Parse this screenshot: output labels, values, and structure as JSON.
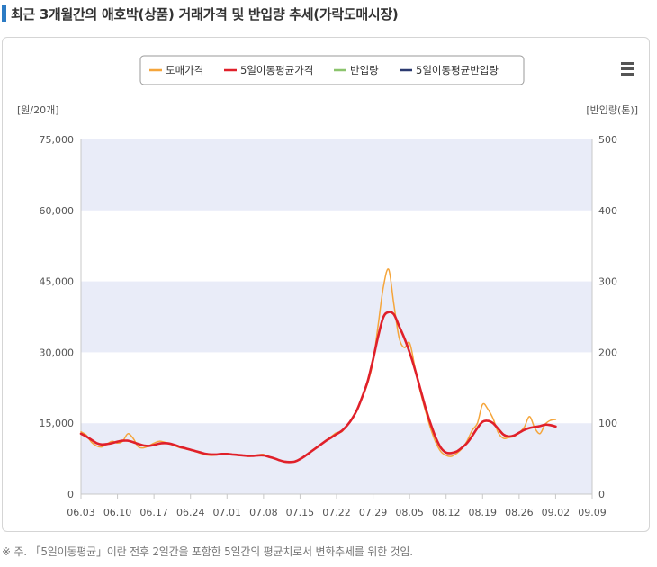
{
  "page": {
    "title": "최근 3개월간의 애호박(상품) 거래가격 및 반입량 추세(가락도매시장)",
    "footnote": "※ 주. 「5일이동평균」이란 전후 2일간을 포함한 5일간의 평균치로서 변화추세를 위한 것임."
  },
  "colors": {
    "price": "#f5a53b",
    "price_ma5": "#e0202a",
    "volume": "#8cc46d",
    "volume_ma5": "#2b3a70",
    "band": "#e9ecf8",
    "accent": "#2c7bc4"
  },
  "chart_data": {
    "type": "line",
    "menu_icon": "hamburger-menu-icon",
    "legend": [
      "도매가격",
      "5일이동평균가격",
      "반입량",
      "5일이동평균반입량"
    ],
    "legend_position": "top-center",
    "y_left_label": "[원/20개]",
    "y_right_label": "[반입량(톤)]",
    "y_left_ticks": [
      "0",
      "15,000",
      "30,000",
      "45,000",
      "60,000",
      "75,000"
    ],
    "y_right_ticks": [
      "0",
      "100",
      "200",
      "300",
      "400",
      "500"
    ],
    "ylim_left": [
      0,
      75000
    ],
    "ylim_right": [
      0,
      500
    ],
    "x_ticks": [
      "06.03",
      "06.10",
      "06.17",
      "06.24",
      "07.01",
      "07.08",
      "07.15",
      "07.22",
      "07.29",
      "08.05",
      "08.12",
      "08.19",
      "08.26",
      "09.02",
      "09.09"
    ],
    "alternating_bands": true,
    "series": [
      {
        "name": "도매가격",
        "x": [
          0,
          1,
          2,
          3,
          4,
          5,
          6,
          7,
          8,
          9,
          10,
          11,
          12,
          13,
          14,
          15,
          16,
          17,
          18,
          19,
          20,
          21,
          22,
          23,
          24,
          25,
          26,
          27,
          28,
          29,
          30,
          31,
          32,
          33,
          34,
          35,
          36,
          37,
          38,
          39,
          40,
          41,
          42,
          43,
          44,
          45,
          46,
          47,
          48,
          49,
          50,
          51,
          52,
          53,
          54,
          55,
          56,
          57,
          58,
          59,
          60,
          61,
          62,
          63,
          64,
          65,
          66,
          67,
          68,
          69,
          70,
          71,
          72,
          73,
          74,
          75,
          76,
          77,
          78,
          79,
          80,
          81,
          82,
          83,
          84,
          85,
          86,
          87,
          88,
          89,
          90,
          91
        ],
        "values": [
          13200,
          12500,
          11000,
          10200,
          10000,
          10600,
          11200,
          10800,
          11200,
          12800,
          11800,
          10000,
          9800,
          10200,
          10800,
          11200,
          11000,
          10600,
          10200,
          9800,
          9600,
          9300,
          9000,
          8600,
          8300,
          8200,
          8300,
          8500,
          8600,
          8400,
          8200,
          8200,
          8000,
          8100,
          8300,
          8400,
          7900,
          7600,
          7200,
          6800,
          6700,
          6900,
          7500,
          8200,
          9000,
          9800,
          10600,
          11400,
          12200,
          13000,
          13200,
          14500,
          16000,
          18000,
          20600,
          23600,
          28000,
          36000,
          44000,
          47500,
          40000,
          33000,
          31000,
          32000,
          27000,
          22000,
          17800,
          14000,
          11000,
          9000,
          8200,
          8000,
          8600,
          9600,
          11200,
          13500,
          15000,
          19000,
          18000,
          16000,
          13000,
          11800,
          12000,
          12200,
          13000,
          14200,
          16400,
          14000,
          12800,
          14800,
          15600,
          15800
        ]
      },
      {
        "name": "5일이동평균가격",
        "x": [
          0,
          1,
          2,
          3,
          4,
          5,
          6,
          7,
          8,
          9,
          10,
          11,
          12,
          13,
          14,
          15,
          16,
          17,
          18,
          19,
          20,
          21,
          22,
          23,
          24,
          25,
          26,
          27,
          28,
          29,
          30,
          31,
          32,
          33,
          34,
          35,
          36,
          37,
          38,
          39,
          40,
          41,
          42,
          43,
          44,
          45,
          46,
          47,
          48,
          49,
          50,
          51,
          52,
          53,
          54,
          55,
          56,
          57,
          58,
          59,
          60,
          61,
          62,
          63,
          64,
          65,
          66,
          67,
          68,
          69,
          70,
          71,
          72,
          73,
          74,
          75,
          76,
          77,
          78,
          79,
          80,
          81,
          82,
          83,
          84,
          85,
          86,
          87,
          88,
          89,
          90,
          91
        ],
        "values": [
          12800,
          12200,
          11500,
          10800,
          10500,
          10600,
          10800,
          11100,
          11300,
          11300,
          11000,
          10600,
          10300,
          10200,
          10400,
          10700,
          10800,
          10700,
          10400,
          10000,
          9700,
          9400,
          9100,
          8800,
          8500,
          8400,
          8400,
          8500,
          8500,
          8400,
          8300,
          8200,
          8100,
          8100,
          8200,
          8200,
          7900,
          7600,
          7200,
          6900,
          6800,
          6900,
          7400,
          8100,
          8900,
          9700,
          10500,
          11300,
          12000,
          12700,
          13400,
          14500,
          16000,
          18000,
          20800,
          24000,
          28500,
          33500,
          37500,
          38500,
          38000,
          35500,
          33000,
          30000,
          26500,
          22500,
          18500,
          15000,
          12000,
          9800,
          8800,
          8700,
          9000,
          9800,
          10800,
          12300,
          14000,
          15300,
          15500,
          15000,
          13800,
          12600,
          12200,
          12400,
          13000,
          13600,
          14000,
          14200,
          14400,
          14700,
          14600,
          14300
        ]
      },
      {
        "name": "반입량",
        "x": [],
        "values": []
      },
      {
        "name": "5일이동평균반입량",
        "x": [],
        "values": []
      }
    ]
  }
}
